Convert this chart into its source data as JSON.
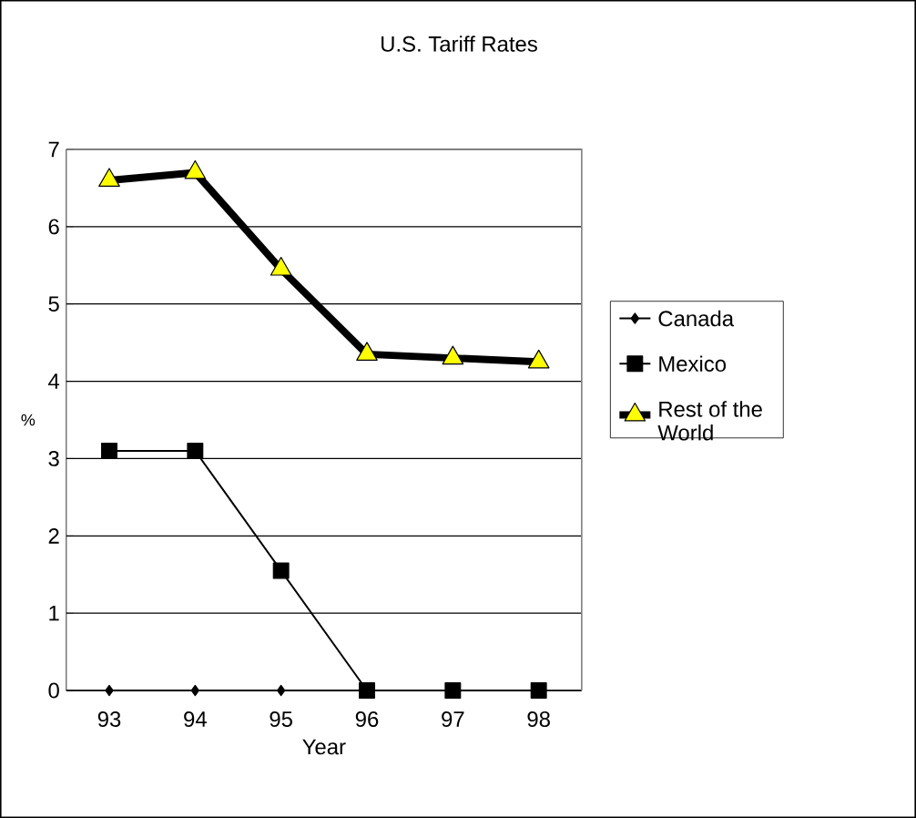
{
  "chart_data": {
    "type": "line",
    "title": "U.S. Tariff Rates",
    "xlabel": "Year",
    "ylabel": "%",
    "categories": [
      "93",
      "94",
      "95",
      "96",
      "97",
      "98"
    ],
    "series": [
      {
        "name": "Canada",
        "color": "#000000",
        "marker": "diamond",
        "values": [
          0,
          0,
          0,
          0,
          0,
          0
        ]
      },
      {
        "name": "Mexico",
        "color": "#000000",
        "marker": "square",
        "values": [
          3.1,
          3.1,
          1.55,
          0,
          0,
          0
        ]
      },
      {
        "name": "Rest of the World",
        "color": "#ffff00",
        "marker": "triangle",
        "values": [
          6.6,
          6.7,
          5.45,
          4.35,
          4.3,
          4.25
        ]
      }
    ],
    "ylim": [
      0,
      7
    ],
    "yticks": [
      0,
      1,
      2,
      3,
      4,
      5,
      6,
      7
    ],
    "grid": "y",
    "legend": "right",
    "line_style": "solid"
  }
}
